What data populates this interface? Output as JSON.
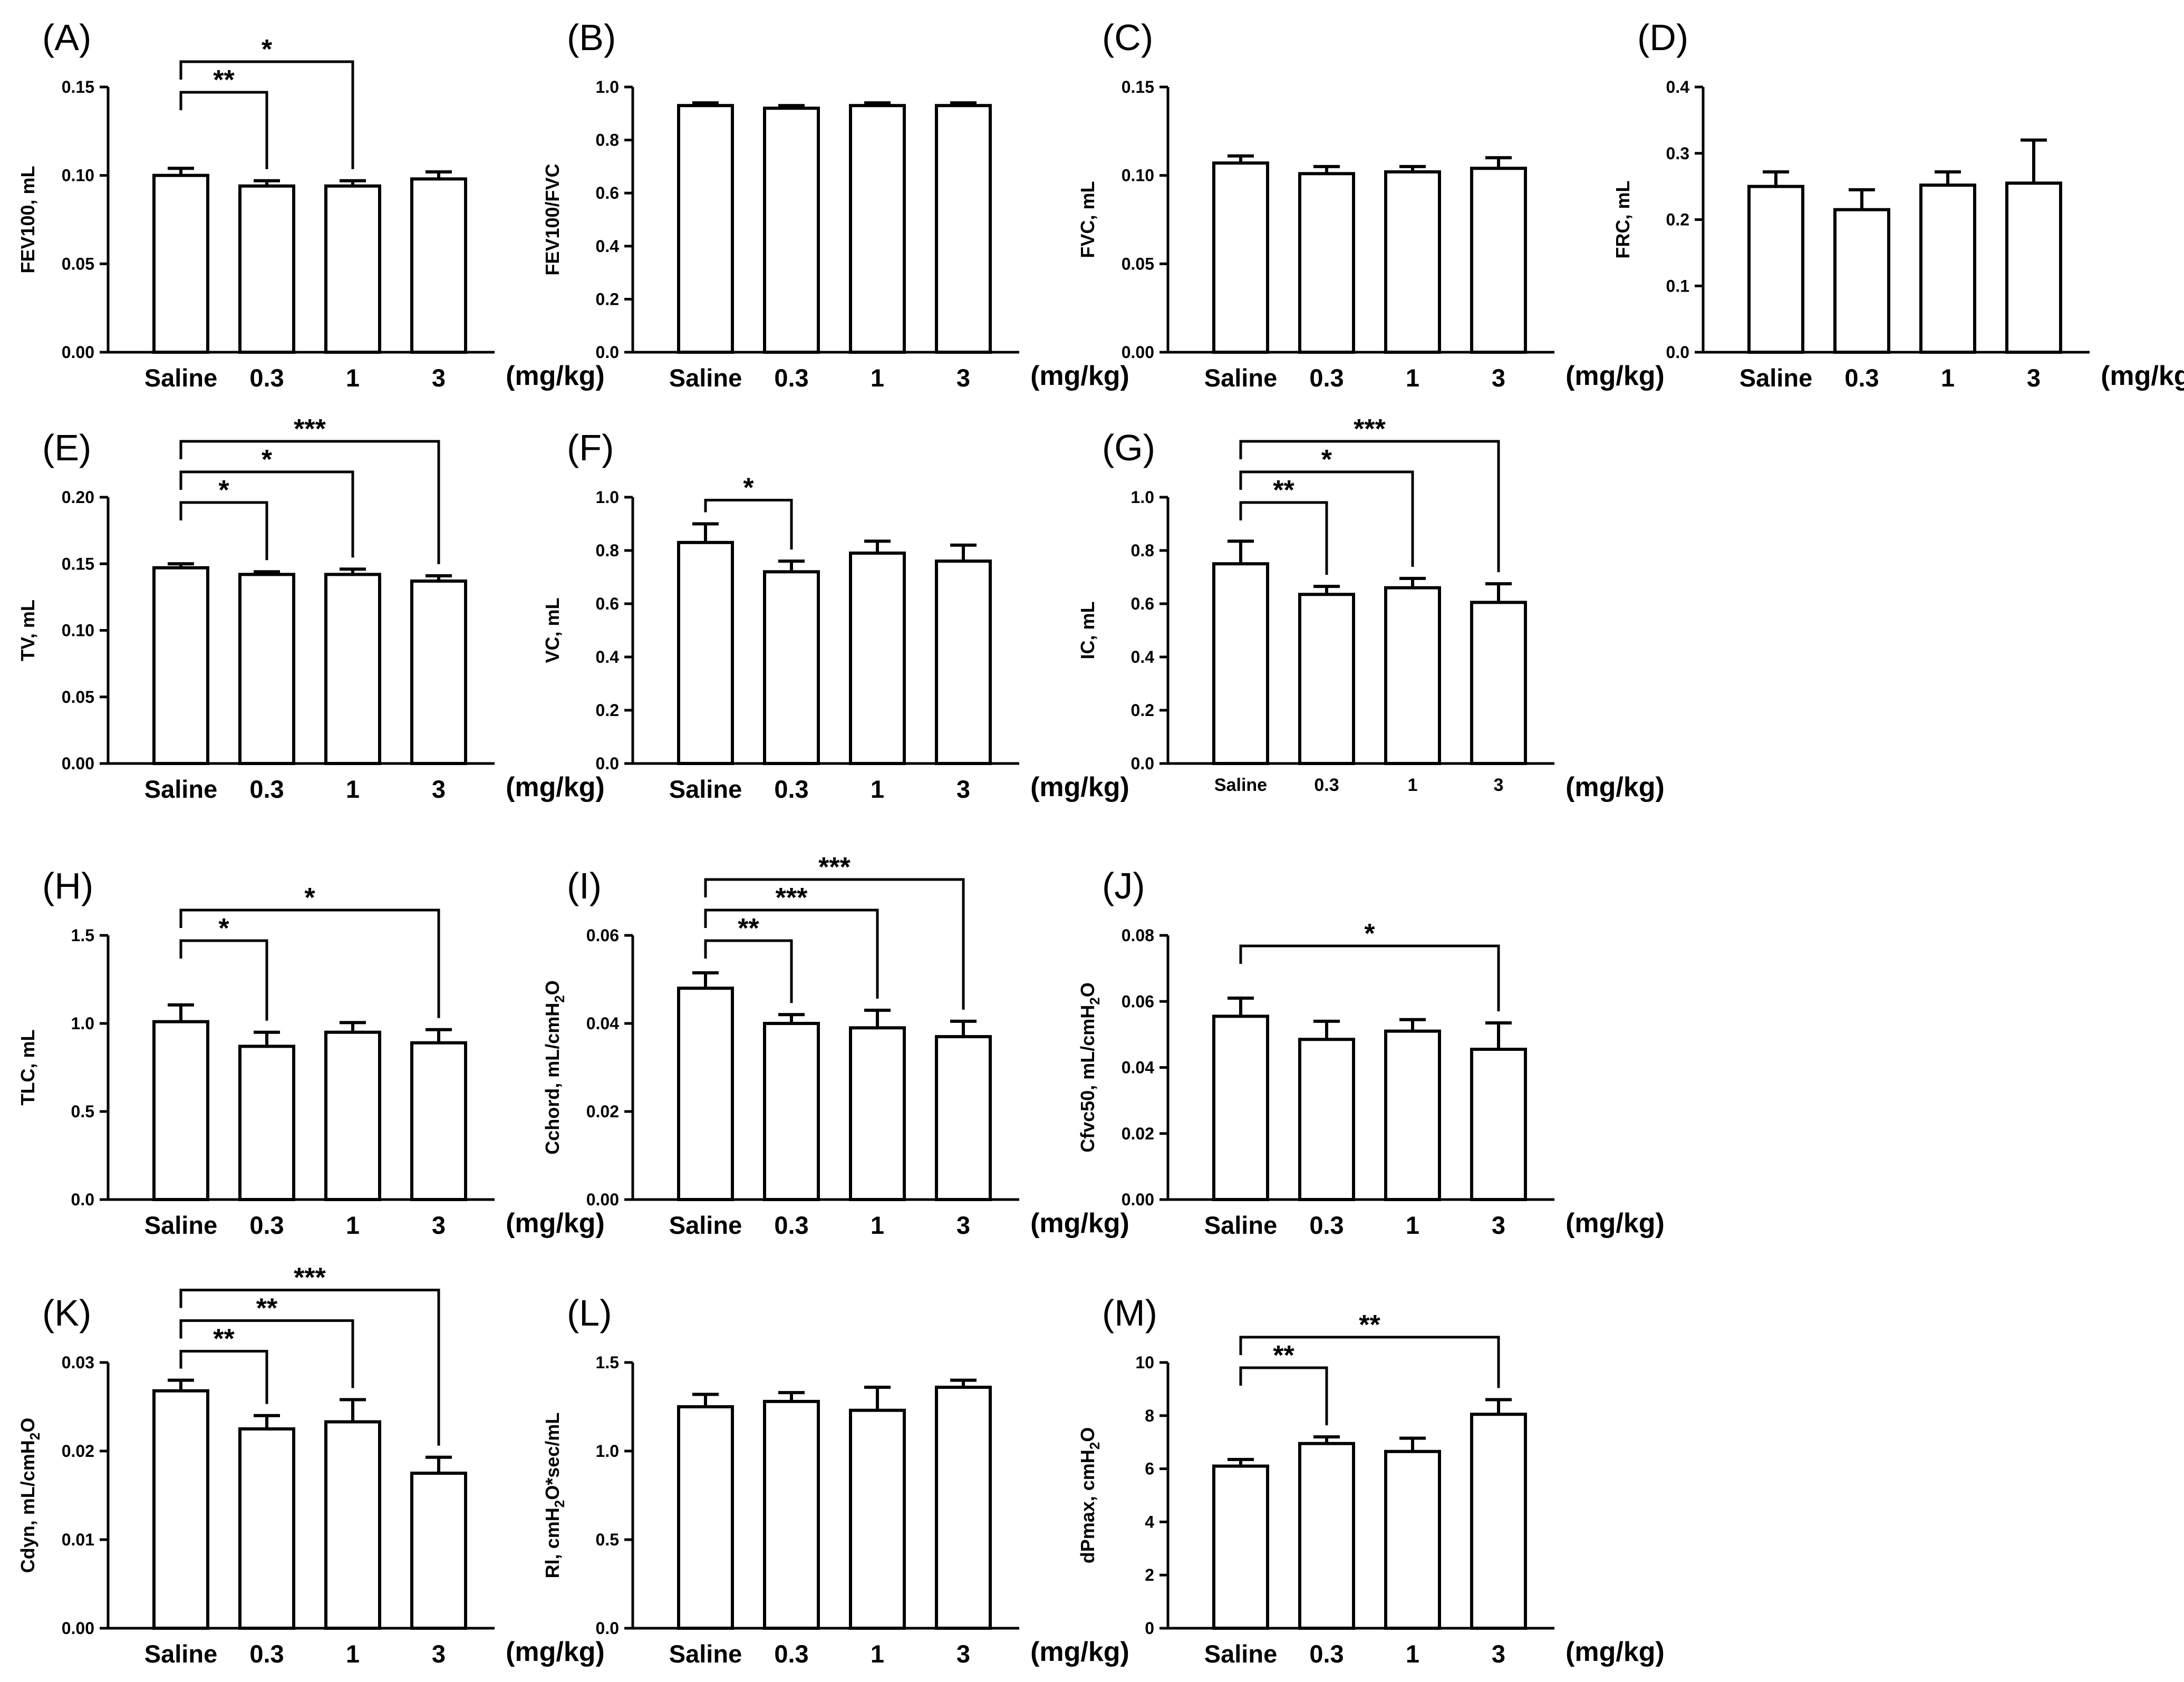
{
  "figure": {
    "categories": [
      "Saline",
      "0.3",
      "1",
      "3"
    ],
    "dose_unit": "(mg/kg)"
  },
  "chart_data": [
    {
      "id": "A",
      "label": "(A)",
      "type": "bar",
      "ylabel": "FEV100, mL",
      "ylim": [
        0,
        0.15
      ],
      "ticks": [
        0.0,
        0.05,
        0.1,
        0.15
      ],
      "tick_labels": [
        "0.00",
        "0.05",
        "0.10",
        "0.15"
      ],
      "values": [
        0.1,
        0.094,
        0.094,
        0.098
      ],
      "errors": [
        0.004,
        0.003,
        0.003,
        0.004
      ],
      "significance": [
        {
          "from": 0,
          "to": 1,
          "label": "**"
        },
        {
          "from": 0,
          "to": 2,
          "label": "*"
        }
      ]
    },
    {
      "id": "B",
      "label": "(B)",
      "type": "bar",
      "ylabel": "FEV100/FVC",
      "ylim": [
        0,
        1.0
      ],
      "ticks": [
        0,
        0.2,
        0.4,
        0.6,
        0.8,
        1.0
      ],
      "tick_labels": [
        "0.0",
        "0.2",
        "0.4",
        "0.6",
        "0.8",
        "1.0"
      ],
      "values": [
        0.93,
        0.92,
        0.93,
        0.93
      ],
      "errors": [
        0.01,
        0.01,
        0.01,
        0.01
      ],
      "significance": []
    },
    {
      "id": "C",
      "label": "(C)",
      "type": "bar",
      "ylabel": "FVC, mL",
      "ylim": [
        0,
        0.15
      ],
      "ticks": [
        0.0,
        0.05,
        0.1,
        0.15
      ],
      "tick_labels": [
        "0.00",
        "0.05",
        "0.10",
        "0.15"
      ],
      "values": [
        0.107,
        0.101,
        0.102,
        0.104
      ],
      "errors": [
        0.004,
        0.004,
        0.003,
        0.006
      ],
      "significance": []
    },
    {
      "id": "D",
      "label": "(D)",
      "type": "bar",
      "ylabel": "FRC, mL",
      "ylim": [
        0,
        0.4
      ],
      "ticks": [
        0,
        0.1,
        0.2,
        0.3,
        0.4
      ],
      "tick_labels": [
        "0.0",
        "0.1",
        "0.2",
        "0.3",
        "0.4"
      ],
      "values": [
        0.25,
        0.215,
        0.252,
        0.255
      ],
      "errors": [
        0.022,
        0.03,
        0.02,
        0.065
      ],
      "significance": []
    },
    {
      "id": "E",
      "label": "(E)",
      "type": "bar",
      "ylabel": "TV, mL",
      "ylim": [
        0,
        0.2
      ],
      "ticks": [
        0,
        0.05,
        0.1,
        0.15,
        0.2
      ],
      "tick_labels": [
        "0.00",
        "0.05",
        "0.10",
        "0.15",
        "0.20"
      ],
      "values": [
        0.147,
        0.142,
        0.142,
        0.137
      ],
      "errors": [
        0.003,
        0.002,
        0.004,
        0.004
      ],
      "significance": [
        {
          "from": 0,
          "to": 1,
          "label": "*"
        },
        {
          "from": 0,
          "to": 2,
          "label": "*"
        },
        {
          "from": 0,
          "to": 3,
          "label": "***"
        }
      ]
    },
    {
      "id": "F",
      "label": "(F)",
      "type": "bar",
      "ylabel": "VC, mL",
      "ylim": [
        0,
        1.0
      ],
      "ticks": [
        0,
        0.2,
        0.4,
        0.6,
        0.8,
        1.0
      ],
      "tick_labels": [
        "0.0",
        "0.2",
        "0.4",
        "0.6",
        "0.8",
        "1.0"
      ],
      "values": [
        0.83,
        0.72,
        0.79,
        0.76
      ],
      "errors": [
        0.07,
        0.04,
        0.045,
        0.06
      ],
      "significance": [
        {
          "from": 0,
          "to": 1,
          "label": "*"
        }
      ]
    },
    {
      "id": "G",
      "label": "(G)",
      "type": "bar",
      "ylabel": "IC, mL",
      "ylim": [
        0,
        1.0
      ],
      "ticks": [
        0,
        0.2,
        0.4,
        0.6,
        0.8,
        1.0
      ],
      "tick_labels": [
        "0.0",
        "0.2",
        "0.4",
        "0.6",
        "0.8",
        "1.0"
      ],
      "small_categories": true,
      "values": [
        0.75,
        0.635,
        0.66,
        0.605
      ],
      "errors": [
        0.085,
        0.03,
        0.035,
        0.07
      ],
      "significance": [
        {
          "from": 0,
          "to": 1,
          "label": "**"
        },
        {
          "from": 0,
          "to": 2,
          "label": "*"
        },
        {
          "from": 0,
          "to": 3,
          "label": "***"
        }
      ]
    },
    {
      "id": "H",
      "label": "(H)",
      "type": "bar",
      "ylabel": "TLC, mL",
      "ylim": [
        0,
        1.5
      ],
      "ticks": [
        0,
        0.5,
        1.0,
        1.5
      ],
      "tick_labels": [
        "0.0",
        "0.5",
        "1.0",
        "1.5"
      ],
      "values": [
        1.01,
        0.87,
        0.95,
        0.89
      ],
      "errors": [
        0.095,
        0.08,
        0.055,
        0.075
      ],
      "significance": [
        {
          "from": 0,
          "to": 1,
          "label": "*"
        },
        {
          "from": 0,
          "to": 3,
          "label": "*"
        }
      ]
    },
    {
      "id": "I",
      "label": "(I)",
      "type": "bar",
      "ylabel": "Cchord, mL/cmH2O",
      "ylim": [
        0,
        0.06
      ],
      "ticks": [
        0,
        0.02,
        0.04,
        0.06
      ],
      "tick_labels": [
        "0.00",
        "0.02",
        "0.04",
        "0.06"
      ],
      "values": [
        0.048,
        0.04,
        0.039,
        0.037
      ],
      "errors": [
        0.0035,
        0.002,
        0.004,
        0.0035
      ],
      "significance": [
        {
          "from": 0,
          "to": 1,
          "label": "**"
        },
        {
          "from": 0,
          "to": 2,
          "label": "***"
        },
        {
          "from": 0,
          "to": 3,
          "label": "***"
        }
      ]
    },
    {
      "id": "J",
      "label": "(J)",
      "type": "bar",
      "ylabel": "Cfvc50, mL/cmH2O",
      "ylim": [
        0,
        0.08
      ],
      "ticks": [
        0,
        0.02,
        0.04,
        0.06,
        0.08
      ],
      "tick_labels": [
        "0.00",
        "0.02",
        "0.04",
        "0.06",
        "0.08"
      ],
      "values": [
        0.0555,
        0.0485,
        0.051,
        0.0455
      ],
      "errors": [
        0.0055,
        0.0055,
        0.0035,
        0.008
      ],
      "significance": [
        {
          "from": 0,
          "to": 3,
          "label": "*"
        }
      ]
    },
    {
      "id": "K",
      "label": "(K)",
      "type": "bar",
      "ylabel": "Cdyn, mL/cmH2O",
      "ylim": [
        0,
        0.03
      ],
      "ticks": [
        0,
        0.01,
        0.02,
        0.03
      ],
      "tick_labels": [
        "0.00",
        "0.01",
        "0.02",
        "0.03"
      ],
      "values": [
        0.0268,
        0.0225,
        0.0233,
        0.0175
      ],
      "errors": [
        0.0012,
        0.0015,
        0.0025,
        0.0018
      ],
      "significance": [
        {
          "from": 0,
          "to": 1,
          "label": "**"
        },
        {
          "from": 0,
          "to": 2,
          "label": "**"
        },
        {
          "from": 0,
          "to": 3,
          "label": "***"
        }
      ]
    },
    {
      "id": "L",
      "label": "(L)",
      "type": "bar",
      "ylabel": "Rl, cmH2O*sec/mL",
      "ylim": [
        0,
        1.5
      ],
      "ticks": [
        0,
        0.5,
        1.0,
        1.5
      ],
      "tick_labels": [
        "0.0",
        "0.5",
        "1.0",
        "1.5"
      ],
      "values": [
        1.25,
        1.28,
        1.23,
        1.36
      ],
      "errors": [
        0.07,
        0.05,
        0.13,
        0.04
      ],
      "significance": []
    },
    {
      "id": "M",
      "label": "(M)",
      "type": "bar",
      "ylabel": "dPmax, cmH2O",
      "ylim": [
        0,
        10
      ],
      "ticks": [
        0,
        2,
        4,
        6,
        8,
        10
      ],
      "tick_labels": [
        "0",
        "2",
        "4",
        "6",
        "8",
        "10"
      ],
      "values": [
        6.1,
        6.95,
        6.65,
        8.05
      ],
      "errors": [
        0.25,
        0.25,
        0.5,
        0.55
      ],
      "significance": [
        {
          "from": 0,
          "to": 1,
          "label": "**"
        },
        {
          "from": 0,
          "to": 3,
          "label": "**"
        }
      ]
    }
  ]
}
